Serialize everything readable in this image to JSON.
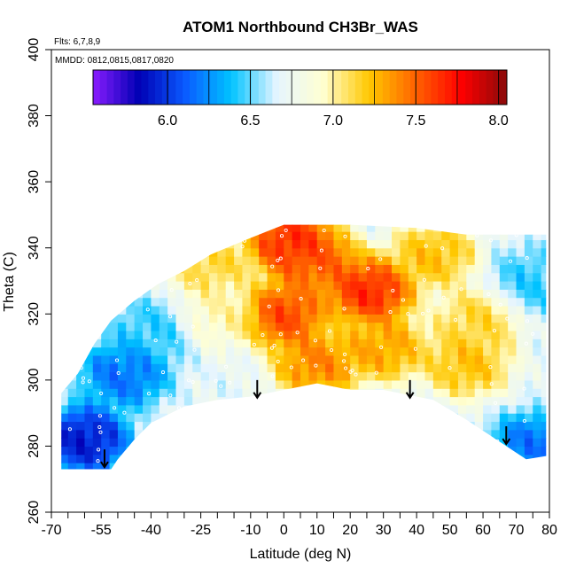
{
  "chart_data": {
    "type": "heatmap",
    "title": "ATOM1 Northbound CH3Br_WAS",
    "notes": [
      "Flts: 6,7,8,9",
      "MMDD: 0812,0815,0817,0820"
    ],
    "xlabel": "Latitude (deg N)",
    "ylabel": "Theta (C)",
    "xlim": [
      -70,
      80
    ],
    "ylim": [
      260,
      400
    ],
    "x_ticks": [
      "-70",
      "-55",
      "-40",
      "-25",
      "-10",
      "0",
      "10",
      "20",
      "30",
      "40",
      "50",
      "60",
      "70",
      "80"
    ],
    "x_tick_values": [
      -70,
      -55,
      -40,
      -25,
      -10,
      0,
      10,
      20,
      30,
      40,
      50,
      60,
      70,
      80
    ],
    "x_minor_ticks": [
      -65,
      -60,
      -50,
      -45,
      -35,
      -30,
      -20,
      -15,
      -5,
      5,
      15,
      25,
      35,
      45,
      55,
      65,
      75
    ],
    "y_ticks": [
      "260",
      "280",
      "300",
      "320",
      "340",
      "360",
      "380",
      "400"
    ],
    "y_tick_values": [
      260,
      280,
      300,
      320,
      340,
      360,
      380,
      400
    ],
    "colorbar": {
      "range": [
        5.55,
        8.05
      ],
      "ticks": [
        "6.0",
        "6.5",
        "7.0",
        "7.5",
        "8.0"
      ],
      "tick_values": [
        6.0,
        6.5,
        7.0,
        7.5,
        8.0
      ],
      "colors": [
        "#8a1cff",
        "#0000b4",
        "#0a5aff",
        "#00c3ff",
        "#e6f5ff",
        "#ffffd2",
        "#ffc800",
        "#ff6400",
        "#ff0000",
        "#8a0a0a"
      ]
    },
    "field": {
      "region_boundary": [
        [
          -67,
          273
        ],
        [
          -67,
          296
        ],
        [
          -62,
          302
        ],
        [
          -57,
          311
        ],
        [
          -52,
          318
        ],
        [
          -45,
          324
        ],
        [
          -38,
          329
        ],
        [
          -30,
          333
        ],
        [
          -22,
          338
        ],
        [
          -10,
          343
        ],
        [
          0,
          347
        ],
        [
          20,
          347
        ],
        [
          40,
          346
        ],
        [
          55,
          344
        ],
        [
          62,
          344
        ],
        [
          75,
          344
        ],
        [
          79,
          344
        ],
        [
          79,
          277
        ],
        [
          73,
          276
        ],
        [
          67,
          280
        ],
        [
          55,
          288
        ],
        [
          45,
          294
        ],
        [
          40,
          295
        ],
        [
          30,
          297
        ],
        [
          20,
          297
        ],
        [
          10,
          299
        ],
        [
          0,
          297
        ],
        [
          -10,
          295
        ],
        [
          -20,
          294
        ],
        [
          -30,
          292
        ],
        [
          -40,
          287
        ],
        [
          -45,
          282
        ],
        [
          -50,
          276
        ],
        [
          -52,
          273
        ]
      ],
      "hotspots": [
        {
          "lat": 0,
          "theta": 320,
          "value": 7.7
        },
        {
          "lat": 26,
          "theta": 327,
          "value": 7.8
        },
        {
          "lat": 10,
          "theta": 336,
          "value": 7.6
        },
        {
          "lat": 2,
          "theta": 342,
          "value": 7.8
        },
        {
          "lat": 30,
          "theta": 310,
          "value": 7.4
        },
        {
          "lat": 10,
          "theta": 305,
          "value": 7.5
        },
        {
          "lat": 55,
          "theta": 305,
          "value": 7.3
        },
        {
          "lat": 58,
          "theta": 318,
          "value": 7.2
        },
        {
          "lat": 45,
          "theta": 338,
          "value": 7.3
        },
        {
          "lat": -20,
          "theta": 320,
          "value": 7.0
        },
        {
          "lat": -22,
          "theta": 335,
          "value": 7.2
        },
        {
          "lat": -60,
          "theta": 282,
          "value": 5.8
        },
        {
          "lat": -48,
          "theta": 302,
          "value": 6.1
        },
        {
          "lat": -40,
          "theta": 315,
          "value": 6.4
        },
        {
          "lat": 75,
          "theta": 280,
          "value": 6.1
        },
        {
          "lat": 75,
          "theta": 330,
          "value": 6.4
        }
      ],
      "background_value": 6.7
    },
    "tropopause_arrows": [
      {
        "lat": -54,
        "theta": 279
      },
      {
        "lat": -8,
        "theta": 300
      },
      {
        "lat": 38,
        "theta": 300
      },
      {
        "lat": 67,
        "theta": 286
      }
    ]
  }
}
